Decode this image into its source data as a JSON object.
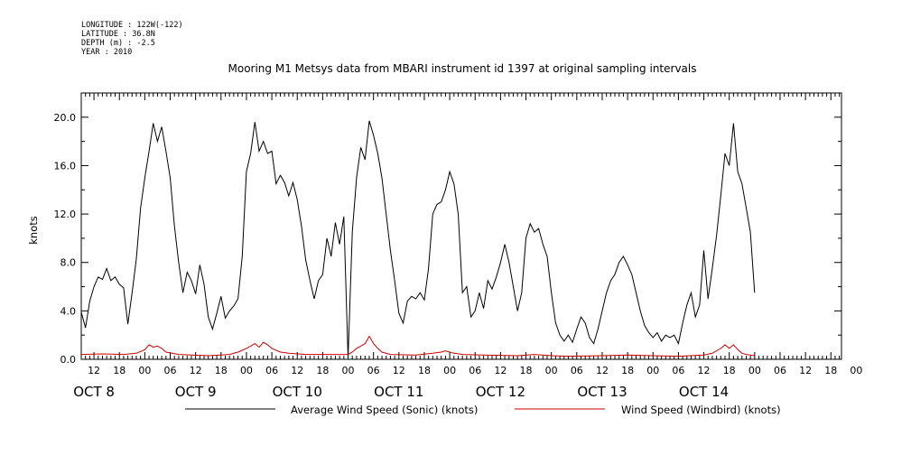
{
  "metadata": {
    "longitude": "LONGITUDE : 122W(-122)",
    "latitude": "LATITUDE : 36.8N",
    "depth": "DEPTH (m) : -2.5",
    "year": "YEAR : 2010"
  },
  "chart_data": {
    "type": "line",
    "title": "Mooring M1 Metsys data from MBARI instrument id 1397 at original sampling intervals",
    "xlabel": "",
    "ylabel": "knots",
    "xlim_hours": [
      -15,
      164.5
    ],
    "ylim": [
      0,
      22
    ],
    "y_ticks": [
      0.0,
      4.0,
      8.0,
      12.0,
      16.0,
      20.0
    ],
    "y_tick_labels": [
      "0.0",
      "4.0",
      "8.0",
      "12.0",
      "16.0",
      "20.0"
    ],
    "hour_tick_labels": [
      {
        "h": -12,
        "label": "12"
      },
      {
        "h": -6,
        "label": "18"
      },
      {
        "h": 0,
        "label": "00"
      },
      {
        "h": 6,
        "label": "06"
      },
      {
        "h": 12,
        "label": "12"
      },
      {
        "h": 18,
        "label": "18"
      },
      {
        "h": 24,
        "label": "00"
      },
      {
        "h": 30,
        "label": "06"
      },
      {
        "h": 36,
        "label": "12"
      },
      {
        "h": 42,
        "label": "18"
      },
      {
        "h": 48,
        "label": "00"
      },
      {
        "h": 54,
        "label": "06"
      },
      {
        "h": 60,
        "label": "12"
      },
      {
        "h": 66,
        "label": "18"
      },
      {
        "h": 72,
        "label": "00"
      },
      {
        "h": 78,
        "label": "06"
      },
      {
        "h": 84,
        "label": "12"
      },
      {
        "h": 90,
        "label": "18"
      },
      {
        "h": 96,
        "label": "00"
      },
      {
        "h": 102,
        "label": "06"
      },
      {
        "h": 108,
        "label": "12"
      },
      {
        "h": 114,
        "label": "18"
      },
      {
        "h": 120,
        "label": "00"
      },
      {
        "h": 126,
        "label": "06"
      },
      {
        "h": 132,
        "label": "12"
      },
      {
        "h": 138,
        "label": "18"
      },
      {
        "h": 144,
        "label": "00"
      },
      {
        "h": 150,
        "label": "06"
      },
      {
        "h": 156,
        "label": "12"
      },
      {
        "h": 162,
        "label": "18"
      },
      {
        "h": 168,
        "label": "00"
      }
    ],
    "day_labels": [
      {
        "h": -12,
        "label": "OCT  8"
      },
      {
        "h": 12,
        "label": "OCT  9"
      },
      {
        "h": 36,
        "label": "OCT 10"
      },
      {
        "h": 60,
        "label": "OCT 11"
      },
      {
        "h": 84,
        "label": "OCT 12"
      },
      {
        "h": 108,
        "label": "OCT 13"
      },
      {
        "h": 132,
        "label": "OCT 14"
      }
    ],
    "x_note": "x values are hours relative to 2010-10-09 00:00",
    "series": [
      {
        "name": "Average Wind Speed (Sonic) (knots)",
        "color": "#000000",
        "points": [
          [
            -15,
            3.9
          ],
          [
            -14,
            2.6
          ],
          [
            -13,
            4.8
          ],
          [
            -12,
            6.0
          ],
          [
            -11,
            6.8
          ],
          [
            -10,
            6.6
          ],
          [
            -9,
            7.5
          ],
          [
            -8,
            6.5
          ],
          [
            -7,
            6.8
          ],
          [
            -6,
            6.2
          ],
          [
            -5,
            5.9
          ],
          [
            -4,
            2.9
          ],
          [
            -3,
            5.5
          ],
          [
            -2,
            8.3
          ],
          [
            -1,
            12.5
          ],
          [
            0,
            15.0
          ],
          [
            1,
            17.2
          ],
          [
            2,
            19.5
          ],
          [
            3,
            18.0
          ],
          [
            4,
            19.2
          ],
          [
            5,
            17.2
          ],
          [
            6,
            15.0
          ],
          [
            7,
            11.0
          ],
          [
            8,
            8.0
          ],
          [
            9,
            5.5
          ],
          [
            10,
            7.2
          ],
          [
            11,
            6.5
          ],
          [
            12,
            5.4
          ],
          [
            13,
            7.8
          ],
          [
            14,
            6.2
          ],
          [
            15,
            3.5
          ],
          [
            16,
            2.5
          ],
          [
            17,
            3.8
          ],
          [
            18,
            5.2
          ],
          [
            19,
            3.4
          ],
          [
            20,
            4.0
          ],
          [
            21,
            4.4
          ],
          [
            22,
            5.0
          ],
          [
            23,
            8.5
          ],
          [
            24,
            15.5
          ],
          [
            25,
            17.0
          ],
          [
            26,
            19.6
          ],
          [
            27,
            17.2
          ],
          [
            28,
            18.0
          ],
          [
            29,
            17.0
          ],
          [
            30,
            17.2
          ],
          [
            31,
            14.5
          ],
          [
            32,
            15.2
          ],
          [
            33,
            14.6
          ],
          [
            34,
            13.5
          ],
          [
            35,
            14.6
          ],
          [
            36,
            13.2
          ],
          [
            37,
            11.0
          ],
          [
            38,
            8.2
          ],
          [
            39,
            6.5
          ],
          [
            40,
            5.0
          ],
          [
            41,
            6.5
          ],
          [
            42,
            7.0
          ],
          [
            43,
            10.0
          ],
          [
            44,
            8.5
          ],
          [
            45,
            11.3
          ],
          [
            46,
            9.5
          ],
          [
            47,
            11.8
          ],
          [
            48,
            0.1
          ],
          [
            49,
            10.5
          ],
          [
            50,
            15.0
          ],
          [
            51,
            17.5
          ],
          [
            52,
            16.5
          ],
          [
            53,
            19.7
          ],
          [
            54,
            18.5
          ],
          [
            55,
            17.0
          ],
          [
            56,
            15.0
          ],
          [
            57,
            12.0
          ],
          [
            58,
            9.0
          ],
          [
            59,
            6.5
          ],
          [
            60,
            3.8
          ],
          [
            61,
            3.0
          ],
          [
            62,
            4.8
          ],
          [
            63,
            5.2
          ],
          [
            64,
            5.0
          ],
          [
            65,
            5.5
          ],
          [
            66,
            4.9
          ],
          [
            67,
            7.5
          ],
          [
            68,
            12.0
          ],
          [
            69,
            12.8
          ],
          [
            70,
            13.0
          ],
          [
            71,
            14.0
          ],
          [
            72,
            15.5
          ],
          [
            73,
            14.5
          ],
          [
            74,
            12.0
          ],
          [
            75,
            5.5
          ],
          [
            76,
            6.0
          ],
          [
            77,
            3.5
          ],
          [
            78,
            4.0
          ],
          [
            79,
            5.5
          ],
          [
            80,
            4.2
          ],
          [
            81,
            6.5
          ],
          [
            82,
            5.8
          ],
          [
            83,
            6.8
          ],
          [
            84,
            8.0
          ],
          [
            85,
            9.5
          ],
          [
            86,
            8.0
          ],
          [
            87,
            6.0
          ],
          [
            88,
            4.0
          ],
          [
            89,
            5.5
          ],
          [
            90,
            10.0
          ],
          [
            91,
            11.2
          ],
          [
            92,
            10.5
          ],
          [
            93,
            10.8
          ],
          [
            94,
            9.5
          ],
          [
            95,
            8.5
          ],
          [
            96,
            5.5
          ],
          [
            97,
            3.0
          ],
          [
            98,
            2.0
          ],
          [
            99,
            1.5
          ],
          [
            100,
            2.0
          ],
          [
            101,
            1.4
          ],
          [
            102,
            2.5
          ],
          [
            103,
            3.5
          ],
          [
            104,
            3.0
          ],
          [
            105,
            1.8
          ],
          [
            106,
            1.3
          ],
          [
            107,
            2.5
          ],
          [
            108,
            4.0
          ],
          [
            109,
            5.5
          ],
          [
            110,
            6.5
          ],
          [
            111,
            7.0
          ],
          [
            112,
            8.0
          ],
          [
            113,
            8.5
          ],
          [
            114,
            7.8
          ],
          [
            115,
            7.0
          ],
          [
            116,
            5.5
          ],
          [
            117,
            4.0
          ],
          [
            118,
            2.8
          ],
          [
            119,
            2.2
          ],
          [
            120,
            1.8
          ],
          [
            121,
            2.2
          ],
          [
            122,
            1.5
          ],
          [
            123,
            2.0
          ],
          [
            124,
            1.8
          ],
          [
            125,
            2.0
          ],
          [
            126,
            1.3
          ],
          [
            127,
            3.0
          ],
          [
            128,
            4.5
          ],
          [
            129,
            5.5
          ],
          [
            130,
            3.5
          ],
          [
            131,
            4.5
          ],
          [
            132,
            9.0
          ],
          [
            133,
            5.0
          ],
          [
            134,
            7.5
          ],
          [
            135,
            10.2
          ],
          [
            136,
            13.5
          ],
          [
            137,
            17.0
          ],
          [
            138,
            16.0
          ],
          [
            139,
            19.5
          ],
          [
            140,
            15.5
          ],
          [
            141,
            14.5
          ],
          [
            142,
            12.5
          ],
          [
            143,
            10.5
          ],
          [
            144,
            5.5
          ]
        ]
      },
      {
        "name": "Wind Speed (Windbird) (knots)",
        "color": "#cc0000",
        "points": [
          [
            -15,
            0.4
          ],
          [
            -10,
            0.45
          ],
          [
            -5,
            0.4
          ],
          [
            -2,
            0.5
          ],
          [
            0,
            0.8
          ],
          [
            1,
            1.2
          ],
          [
            2,
            1.0
          ],
          [
            3,
            1.1
          ],
          [
            4,
            0.9
          ],
          [
            5,
            0.6
          ],
          [
            8,
            0.4
          ],
          [
            15,
            0.3
          ],
          [
            20,
            0.4
          ],
          [
            22,
            0.6
          ],
          [
            24,
            0.9
          ],
          [
            25,
            1.1
          ],
          [
            26,
            1.3
          ],
          [
            27,
            1.0
          ],
          [
            28,
            1.4
          ],
          [
            29,
            1.2
          ],
          [
            30,
            0.9
          ],
          [
            32,
            0.6
          ],
          [
            34,
            0.5
          ],
          [
            38,
            0.4
          ],
          [
            44,
            0.4
          ],
          [
            48,
            0.4
          ],
          [
            49,
            0.6
          ],
          [
            50,
            0.9
          ],
          [
            51,
            1.1
          ],
          [
            52,
            1.3
          ],
          [
            53,
            1.9
          ],
          [
            54,
            1.3
          ],
          [
            55,
            0.9
          ],
          [
            56,
            0.6
          ],
          [
            58,
            0.4
          ],
          [
            64,
            0.35
          ],
          [
            68,
            0.5
          ],
          [
            70,
            0.6
          ],
          [
            71,
            0.7
          ],
          [
            72,
            0.6
          ],
          [
            73,
            0.5
          ],
          [
            75,
            0.4
          ],
          [
            80,
            0.35
          ],
          [
            88,
            0.3
          ],
          [
            92,
            0.4
          ],
          [
            96,
            0.3
          ],
          [
            100,
            0.25
          ],
          [
            108,
            0.3
          ],
          [
            114,
            0.35
          ],
          [
            120,
            0.3
          ],
          [
            126,
            0.25
          ],
          [
            132,
            0.35
          ],
          [
            134,
            0.5
          ],
          [
            136,
            0.9
          ],
          [
            137,
            1.2
          ],
          [
            138,
            0.9
          ],
          [
            139,
            1.2
          ],
          [
            140,
            0.8
          ],
          [
            141,
            0.5
          ],
          [
            142,
            0.4
          ],
          [
            144,
            0.3
          ]
        ]
      }
    ]
  }
}
